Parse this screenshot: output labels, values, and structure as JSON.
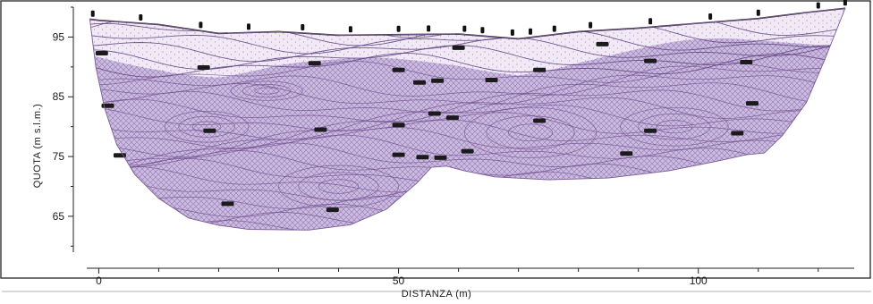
{
  "chart_data": {
    "type": "diagram",
    "xlabel": "DISTANZA  (m)",
    "ylabel": "QUOTA   (m s.l.m.)",
    "x_ticks": [
      0,
      50,
      100
    ],
    "y_ticks": [
      95,
      85,
      75,
      65
    ],
    "xlim": [
      -2,
      126
    ],
    "ylim": [
      59,
      100
    ],
    "colors": {
      "section_fill": "#cbbbdf",
      "upper_fill": "#ede3f3",
      "contour": "#6f4d8e",
      "ground": "#111111",
      "frame": "#333333",
      "electrode": "#111111"
    },
    "ground_profile": [
      [
        -1.5,
        98
      ],
      [
        0,
        97.8
      ],
      [
        10,
        97.1
      ],
      [
        20,
        95.6
      ],
      [
        30,
        95.9
      ],
      [
        40,
        95.3
      ],
      [
        50,
        95.4
      ],
      [
        60,
        95.5
      ],
      [
        70,
        94.7
      ],
      [
        80,
        95.9
      ],
      [
        90,
        96.5
      ],
      [
        100,
        97.3
      ],
      [
        110,
        98.1
      ],
      [
        118,
        99.1
      ],
      [
        124.5,
        99.8
      ]
    ],
    "section_bottom": [
      [
        -1.5,
        98
      ],
      [
        -0.5,
        90
      ],
      [
        1,
        83
      ],
      [
        3,
        77
      ],
      [
        6,
        72
      ],
      [
        10,
        68
      ],
      [
        15,
        64.7
      ],
      [
        20,
        63.5
      ],
      [
        25,
        62.8
      ],
      [
        35,
        62.7
      ],
      [
        42,
        63.6
      ],
      [
        48,
        66.2
      ],
      [
        53,
        70.5
      ],
      [
        55.5,
        73.2
      ],
      [
        58,
        73.4
      ],
      [
        61,
        72.6
      ],
      [
        66,
        71.6
      ],
      [
        75,
        71.1
      ],
      [
        85,
        71.4
      ],
      [
        95,
        72.6
      ],
      [
        103,
        74.2
      ],
      [
        108,
        75.3
      ],
      [
        111,
        75.6
      ],
      [
        114,
        78.5
      ],
      [
        118,
        84
      ],
      [
        121,
        91
      ],
      [
        124.5,
        99.8
      ]
    ],
    "electrode_x": [
      -1,
      7,
      17,
      25,
      34,
      42,
      50,
      55,
      61,
      64,
      69,
      72,
      76,
      82,
      92,
      102,
      110,
      120,
      124.5
    ],
    "resistivity_blocks": [
      [
        0.5,
        92.3
      ],
      [
        17.5,
        89.9
      ],
      [
        36,
        90.6
      ],
      [
        50,
        89.5
      ],
      [
        53.5,
        87.4
      ],
      [
        56.5,
        87.7
      ],
      [
        65.5,
        87.8
      ],
      [
        73.5,
        89.5
      ],
      [
        92,
        91
      ],
      [
        108,
        90.8
      ],
      [
        1.5,
        83.5
      ],
      [
        18.5,
        79.3
      ],
      [
        37,
        79.5
      ],
      [
        50,
        80.3
      ],
      [
        56,
        82.2
      ],
      [
        59,
        81.5
      ],
      [
        73.5,
        81
      ],
      [
        92,
        79.3
      ],
      [
        106.5,
        78.9
      ],
      [
        109,
        83.9
      ],
      [
        3.5,
        75.2
      ],
      [
        50,
        75.3
      ],
      [
        54,
        74.9
      ],
      [
        57,
        74.8
      ],
      [
        61.5,
        75.9
      ],
      [
        88,
        75.5
      ],
      [
        21.5,
        67.1
      ],
      [
        39,
        66.1
      ],
      [
        60,
        93.2
      ],
      [
        84,
        93.8
      ]
    ]
  }
}
